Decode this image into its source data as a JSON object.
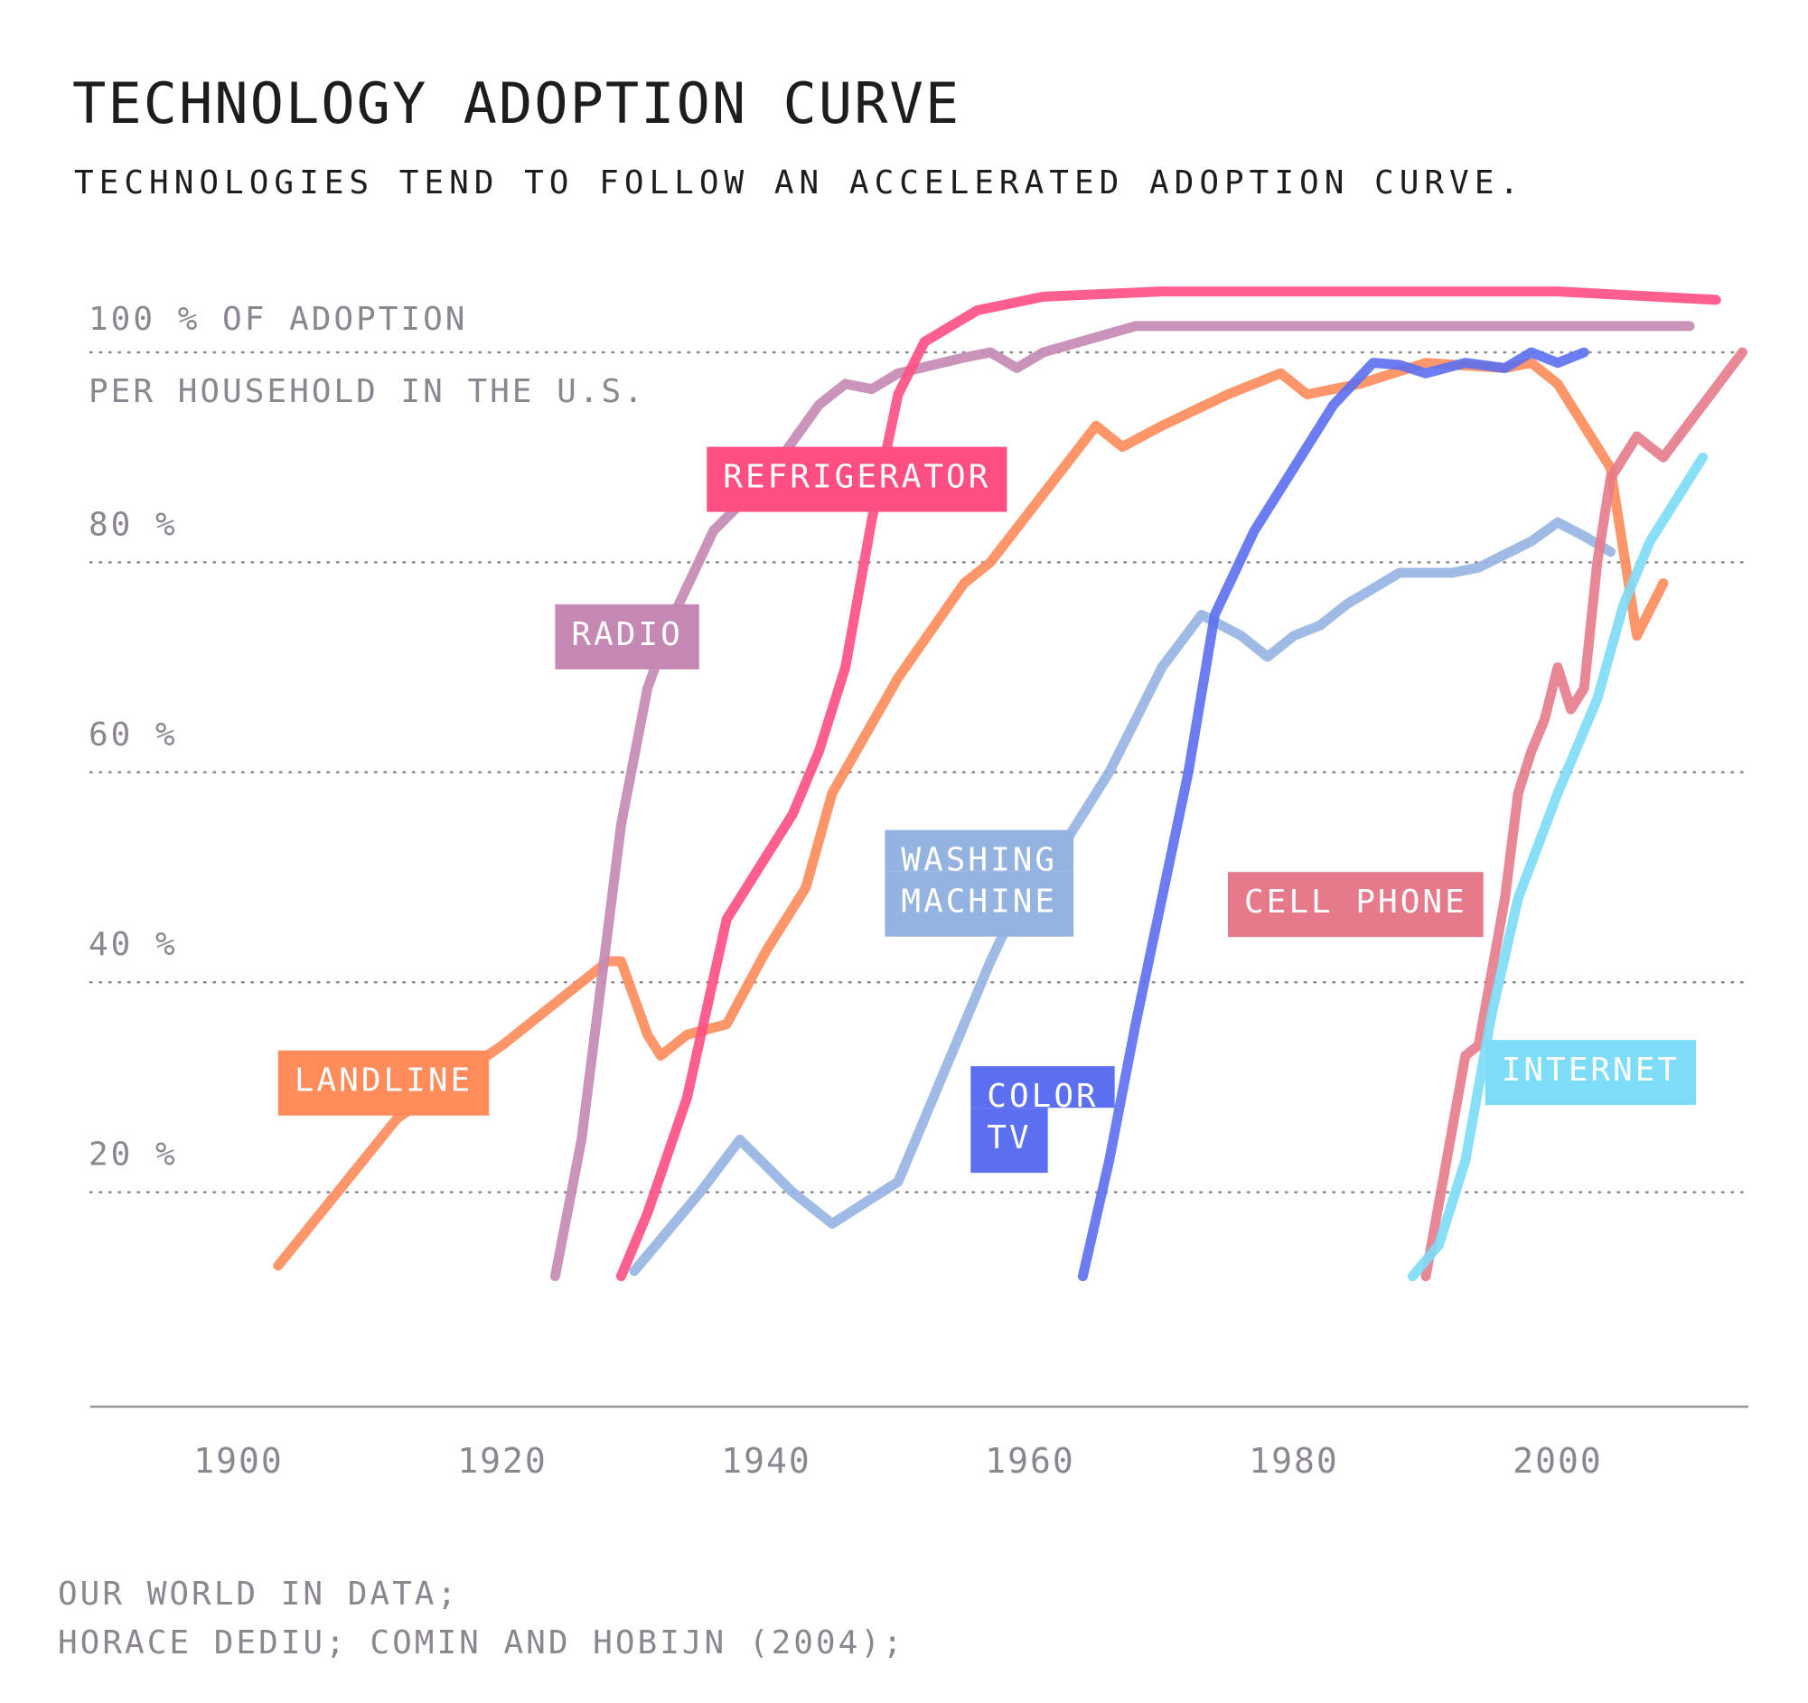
{
  "title": "TECHNOLOGY ADOPTION CURVE",
  "subtitle": "TECHNOLOGIES TEND TO FOLLOW AN ACCELERATED ADOPTION CURVE.",
  "source": {
    "line1": "OUR WORLD IN DATA;",
    "line2": "HORACE DEDIU; COMIN AND HOBIJN (2004);"
  },
  "chart_data": {
    "type": "line",
    "ylabel": "",
    "xlabel": "",
    "y_axis_label_line1": "100 % OF ADOPTION",
    "y_axis_label_line2": "PER HOUSEHOLD IN THE U.S.",
    "xlim": [
      1888,
      2015
    ],
    "ylim": [
      0,
      100
    ],
    "x_ticks": [
      {
        "value": 1900,
        "label": "1900"
      },
      {
        "value": 1920,
        "label": "1920"
      },
      {
        "value": 1940,
        "label": "1940"
      },
      {
        "value": 1960,
        "label": "1960"
      },
      {
        "value": 1980,
        "label": "1980"
      },
      {
        "value": 2000,
        "label": "2000"
      }
    ],
    "y_ticks": [
      {
        "value": 20,
        "label": "20 %"
      },
      {
        "value": 40,
        "label": "40 %"
      },
      {
        "value": 60,
        "label": "60 %"
      },
      {
        "value": 80,
        "label": "80 %"
      }
    ],
    "gridlines": [
      20,
      40,
      60,
      80,
      100
    ],
    "grid": "dotted",
    "series": [
      {
        "name": "LANDLINE",
        "color": "#ff8b5a",
        "label": "LANDLINE",
        "label_anchor": {
          "x": 1903,
          "y": 33.5
        },
        "points": [
          [
            1903,
            13
          ],
          [
            1912,
            27
          ],
          [
            1920,
            34
          ],
          [
            1928,
            42
          ],
          [
            1929,
            42
          ],
          [
            1931,
            35
          ],
          [
            1932,
            33
          ],
          [
            1934,
            35
          ],
          [
            1937,
            36
          ],
          [
            1940,
            43
          ],
          [
            1943,
            49
          ],
          [
            1945,
            58
          ],
          [
            1950,
            69
          ],
          [
            1955,
            78
          ],
          [
            1957,
            80
          ],
          [
            1965,
            93
          ],
          [
            1967,
            91
          ],
          [
            1970,
            93
          ],
          [
            1975,
            96
          ],
          [
            1979,
            98
          ],
          [
            1981,
            96
          ],
          [
            1985,
            97
          ],
          [
            1990,
            99
          ],
          [
            1996,
            98.5
          ],
          [
            1998,
            99
          ],
          [
            2000,
            97
          ],
          [
            2004,
            89
          ],
          [
            2006,
            73
          ],
          [
            2008,
            78
          ]
        ]
      },
      {
        "name": "RADIO",
        "color": "#c488b2",
        "label": "RADIO",
        "label_anchor": {
          "x": 1924,
          "y": 76
        },
        "points": [
          [
            1924,
            12
          ],
          [
            1926,
            25
          ],
          [
            1927,
            35
          ],
          [
            1929,
            55
          ],
          [
            1931,
            68
          ],
          [
            1933,
            75
          ],
          [
            1936,
            83
          ],
          [
            1940,
            88
          ],
          [
            1944,
            95
          ],
          [
            1946,
            97
          ],
          [
            1948,
            96.5
          ],
          [
            1950,
            98
          ],
          [
            1955,
            99.5
          ],
          [
            1957,
            100
          ],
          [
            1959,
            98.5
          ],
          [
            1961,
            100
          ],
          [
            1968,
            102.5
          ],
          [
            2010,
            102.5
          ]
        ]
      },
      {
        "name": "REFRIGERATOR",
        "color": "#ff4e82",
        "label": "REFRIGERATOR",
        "label_anchor": {
          "x": 1935.5,
          "y": 91
        },
        "points": [
          [
            1929,
            12
          ],
          [
            1931,
            18
          ],
          [
            1934,
            29
          ],
          [
            1937,
            46
          ],
          [
            1940,
            52
          ],
          [
            1942,
            56
          ],
          [
            1944,
            62
          ],
          [
            1946,
            70
          ],
          [
            1948,
            84
          ],
          [
            1950,
            96
          ],
          [
            1952,
            101
          ],
          [
            1956,
            104
          ],
          [
            1961,
            105.3
          ],
          [
            1970,
            105.8
          ],
          [
            2000,
            105.8
          ],
          [
            2012,
            105
          ]
        ]
      },
      {
        "name": "WASHING MACHINE",
        "color": "#95b3e1",
        "label": "WASHING\nMACHINE",
        "label_anchor": {
          "x": 1949,
          "y": 54.5
        },
        "points": [
          [
            1930,
            12.5
          ],
          [
            1935,
            20
          ],
          [
            1938,
            25
          ],
          [
            1942,
            20
          ],
          [
            1945,
            17
          ],
          [
            1950,
            21
          ],
          [
            1953,
            30
          ],
          [
            1957,
            42
          ],
          [
            1960,
            50
          ],
          [
            1963,
            54
          ],
          [
            1966,
            60
          ],
          [
            1970,
            70
          ],
          [
            1973,
            75
          ],
          [
            1976,
            73
          ],
          [
            1978,
            71
          ],
          [
            1980,
            73
          ],
          [
            1982,
            74
          ],
          [
            1984,
            76
          ],
          [
            1988,
            79
          ],
          [
            1992,
            79
          ],
          [
            1994,
            79.5
          ],
          [
            1998,
            82
          ],
          [
            2000,
            83.8
          ],
          [
            2002,
            82.5
          ],
          [
            2004,
            81
          ]
        ]
      },
      {
        "name": "COLOR TV",
        "color": "#5b6ff0",
        "label": "COLOR\nTV",
        "label_anchor": {
          "x": 1955.5,
          "y": 32
        },
        "points": [
          [
            1964,
            12
          ],
          [
            1966,
            23
          ],
          [
            1968,
            36
          ],
          [
            1970,
            48
          ],
          [
            1972,
            60
          ],
          [
            1974,
            75
          ],
          [
            1977,
            83
          ],
          [
            1979,
            87
          ],
          [
            1981,
            91
          ],
          [
            1983,
            95
          ],
          [
            1986,
            99
          ],
          [
            1988,
            98.8
          ],
          [
            1990,
            98
          ],
          [
            1993,
            99
          ],
          [
            1996,
            98.5
          ],
          [
            1998,
            100
          ],
          [
            2000,
            99
          ],
          [
            2002,
            100
          ]
        ]
      },
      {
        "name": "CELL PHONE",
        "color": "#e67a8b",
        "label": "CELL PHONE",
        "label_anchor": {
          "x": 1975,
          "y": 50.5
        },
        "points": [
          [
            1990,
            12
          ],
          [
            1993,
            33
          ],
          [
            1994,
            34
          ],
          [
            1996,
            48
          ],
          [
            1997,
            58
          ],
          [
            1998,
            62
          ],
          [
            1999,
            65
          ],
          [
            2000,
            70
          ],
          [
            2001,
            66
          ],
          [
            2002,
            68
          ],
          [
            2003,
            80
          ],
          [
            2004,
            88
          ],
          [
            2006,
            92
          ],
          [
            2008,
            90
          ],
          [
            2014,
            100
          ]
        ]
      },
      {
        "name": "INTERNET",
        "color": "#7ddcf7",
        "label": "INTERNET",
        "label_anchor": {
          "x": 1994.5,
          "y": 34.5
        },
        "points": [
          [
            1989,
            12
          ],
          [
            1991,
            15
          ],
          [
            1993,
            23
          ],
          [
            1995,
            37
          ],
          [
            1997,
            48
          ],
          [
            2000,
            58
          ],
          [
            2003,
            67
          ],
          [
            2005,
            76
          ],
          [
            2007,
            82
          ],
          [
            2011,
            90
          ]
        ]
      }
    ]
  }
}
